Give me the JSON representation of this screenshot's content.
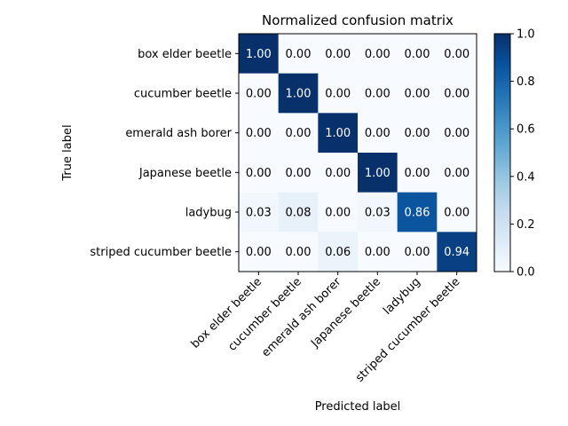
{
  "chart_data": {
    "type": "heatmap",
    "title": "Normalized confusion matrix",
    "xlabel": "Predicted label",
    "ylabel": "True label",
    "categories": [
      "box elder beetle",
      "cucumber beetle",
      "emerald ash borer",
      "Japanese beetle",
      "ladybug",
      "striped cucumber beetle"
    ],
    "values": [
      [
        1.0,
        0.0,
        0.0,
        0.0,
        0.0,
        0.0
      ],
      [
        0.0,
        1.0,
        0.0,
        0.0,
        0.0,
        0.0
      ],
      [
        0.0,
        0.0,
        1.0,
        0.0,
        0.0,
        0.0
      ],
      [
        0.0,
        0.0,
        0.0,
        1.0,
        0.0,
        0.0
      ],
      [
        0.03,
        0.08,
        0.0,
        0.03,
        0.86,
        0.0
      ],
      [
        0.0,
        0.0,
        0.06,
        0.0,
        0.0,
        0.94
      ]
    ],
    "cell_labels": [
      [
        "1.00",
        "0.00",
        "0.00",
        "0.00",
        "0.00",
        "0.00"
      ],
      [
        "0.00",
        "1.00",
        "0.00",
        "0.00",
        "0.00",
        "0.00"
      ],
      [
        "0.00",
        "0.00",
        "1.00",
        "0.00",
        "0.00",
        "0.00"
      ],
      [
        "0.00",
        "0.00",
        "0.00",
        "1.00",
        "0.00",
        "0.00"
      ],
      [
        "0.03",
        "0.08",
        "0.00",
        "0.03",
        "0.86",
        "0.00"
      ],
      [
        "0.00",
        "0.00",
        "0.06",
        "0.00",
        "0.00",
        "0.94"
      ]
    ],
    "colormap": "Blues",
    "colorbar": {
      "range": [
        0.0,
        1.0
      ],
      "ticks": [
        0.0,
        0.2,
        0.4,
        0.6,
        0.8,
        1.0
      ],
      "tick_labels": [
        "0.0",
        "0.2",
        "0.4",
        "0.6",
        "0.8",
        "1.0"
      ]
    },
    "grid": false,
    "colors": {
      "text_dark": "#000000",
      "text_light": "#ffffff"
    }
  }
}
